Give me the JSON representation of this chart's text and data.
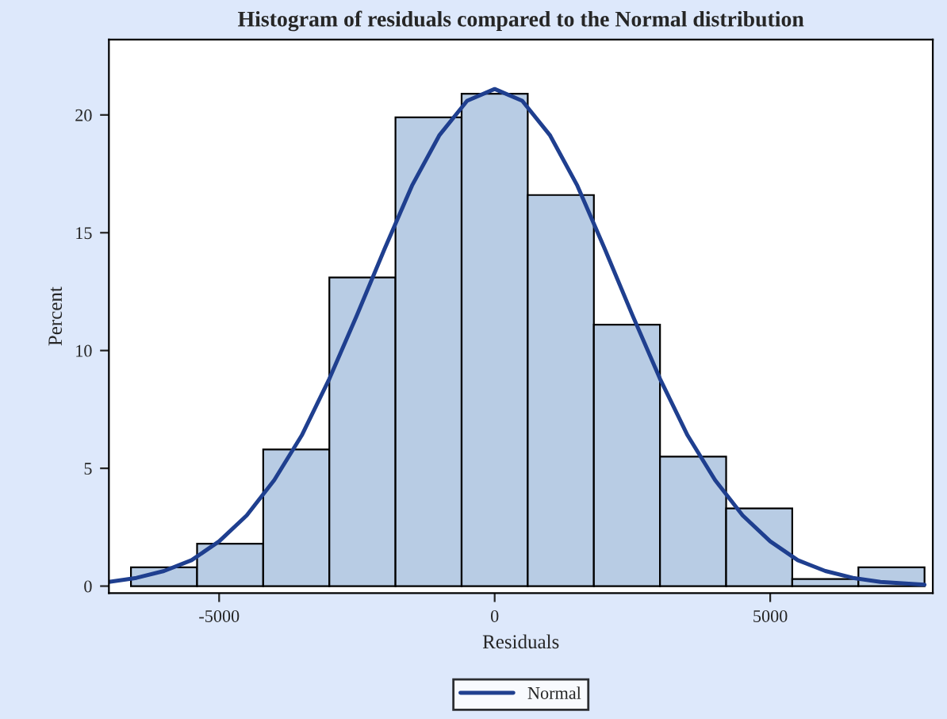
{
  "chart_data": {
    "type": "histogram",
    "title": "Histogram of residuals compared to the Normal distribution",
    "xlabel": "Residuals",
    "ylabel": "Percent",
    "bins": [
      -6600,
      -5400,
      -4200,
      -3000,
      -1800,
      -600,
      600,
      1800,
      3000,
      4200,
      5400,
      6600,
      7800
    ],
    "values": [
      0.8,
      1.8,
      5.8,
      13.1,
      19.9,
      20.9,
      16.6,
      11.1,
      5.5,
      3.3,
      0.3,
      0.8
    ],
    "color": "#b8cce4",
    "series": [
      {
        "name": "Normal",
        "type": "line",
        "color": "#1f3f8f",
        "x": [
          -7000,
          -6500,
          -6000,
          -5500,
          -5000,
          -4500,
          -4000,
          -3500,
          -3000,
          -2500,
          -2000,
          -1500,
          -1000,
          -500,
          0,
          500,
          1000,
          1500,
          2000,
          2500,
          3000,
          3500,
          4000,
          4500,
          5000,
          5500,
          6000,
          6500,
          7000,
          7800
        ],
        "values": [
          0.18,
          0.35,
          0.64,
          1.1,
          1.9,
          3.0,
          4.5,
          6.4,
          8.8,
          11.5,
          14.3,
          17.0,
          19.15,
          20.6,
          21.1,
          20.6,
          19.15,
          17.0,
          14.3,
          11.5,
          8.8,
          6.4,
          4.5,
          3.0,
          1.9,
          1.1,
          0.64,
          0.35,
          0.18,
          0.06
        ]
      }
    ],
    "xlim": [
      -7000,
      7950
    ],
    "ylim": [
      -0.3,
      23.2
    ],
    "xticks": [
      -5000,
      0,
      5000
    ],
    "yticks": [
      0,
      5,
      10,
      15,
      20
    ],
    "grid": false,
    "legend": "bottom"
  }
}
